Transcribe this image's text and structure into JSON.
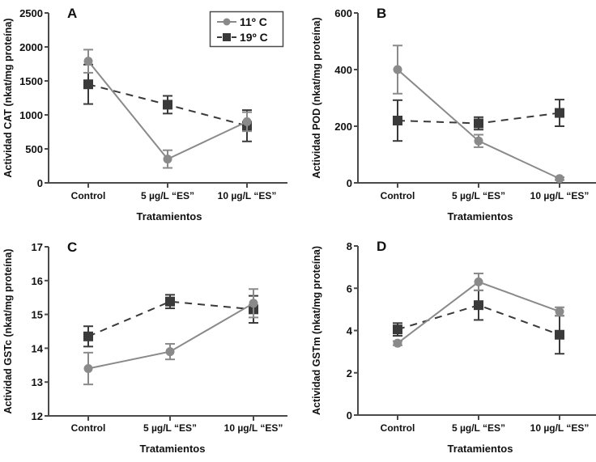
{
  "figure": {
    "legend": {
      "entries": [
        {
          "label": "11º C",
          "marker": "circle",
          "line": "solid",
          "color": "#8a8a8a"
        },
        {
          "label": "19º C",
          "marker": "square",
          "line": "dashed",
          "color": "#3a3a3a"
        }
      ]
    },
    "colors": {
      "axis": "#4a4a4a",
      "series_11": "#8a8a8a",
      "series_19": "#3a3a3a"
    }
  },
  "chart_data": [
    {
      "panel": "A",
      "type": "line",
      "title": "",
      "xlabel": "Tratamientos",
      "ylabel": "Actividad CAT (nkat/mg proteína)",
      "categories": [
        "Control",
        "5 µg/L “ES”",
        "10 µg/L “ES”"
      ],
      "ylim": [
        0,
        2500
      ],
      "yticks": [
        0,
        500,
        1000,
        1500,
        2000,
        2500
      ],
      "grid": false,
      "legend_position": "upper right",
      "series": [
        {
          "name": "11º C",
          "values": [
            1790,
            350,
            900
          ],
          "error": [
            170,
            130,
            140
          ]
        },
        {
          "name": "19º C",
          "values": [
            1450,
            1150,
            840
          ],
          "error": [
            290,
            130,
            230
          ]
        }
      ]
    },
    {
      "panel": "B",
      "type": "line",
      "title": "",
      "xlabel": "Tratamientos",
      "ylabel": "Actividad POD (nkat/mg proteína)",
      "categories": [
        "Control",
        "5 µg/L “ES”",
        "10 µg/L “ES”"
      ],
      "ylim": [
        0,
        600
      ],
      "yticks": [
        0,
        200,
        400,
        600
      ],
      "grid": false,
      "series": [
        {
          "name": "11º C",
          "values": [
            400,
            148,
            15
          ],
          "error": [
            85,
            22,
            5
          ]
        },
        {
          "name": "19º C",
          "values": [
            220,
            210,
            247
          ],
          "error": [
            72,
            22,
            47
          ]
        }
      ]
    },
    {
      "panel": "C",
      "type": "line",
      "title": "",
      "xlabel": "Tratamientos",
      "ylabel": "Actividad GSTc (nkat/mg proteína)",
      "categories": [
        "Control",
        "5 µg/L “ES”",
        "10 µg/L “ES”"
      ],
      "ylim": [
        12,
        17
      ],
      "yticks": [
        12,
        13,
        14,
        15,
        16,
        17
      ],
      "grid": false,
      "series": [
        {
          "name": "11º C",
          "values": [
            13.4,
            13.9,
            15.33
          ],
          "error": [
            0.47,
            0.23,
            0.42
          ]
        },
        {
          "name": "19º C",
          "values": [
            14.35,
            15.38,
            15.15
          ],
          "error": [
            0.3,
            0.2,
            0.4
          ]
        }
      ]
    },
    {
      "panel": "D",
      "type": "line",
      "title": "",
      "xlabel": "Tratamientos",
      "ylabel": "Actividad GSTm (nkat/mg proteína)",
      "categories": [
        "Control",
        "5 µg/L “ES”",
        "10 µg/L “ES”"
      ],
      "ylim": [
        0,
        8
      ],
      "yticks": [
        0,
        2,
        4,
        6,
        8
      ],
      "grid": false,
      "series": [
        {
          "name": "11º C",
          "values": [
            3.4,
            6.3,
            4.9
          ],
          "error": [
            0.1,
            0.4,
            0.2
          ]
        },
        {
          "name": "19º C",
          "values": [
            4.05,
            5.2,
            3.8
          ],
          "error": [
            0.3,
            0.7,
            0.9
          ]
        }
      ]
    }
  ]
}
